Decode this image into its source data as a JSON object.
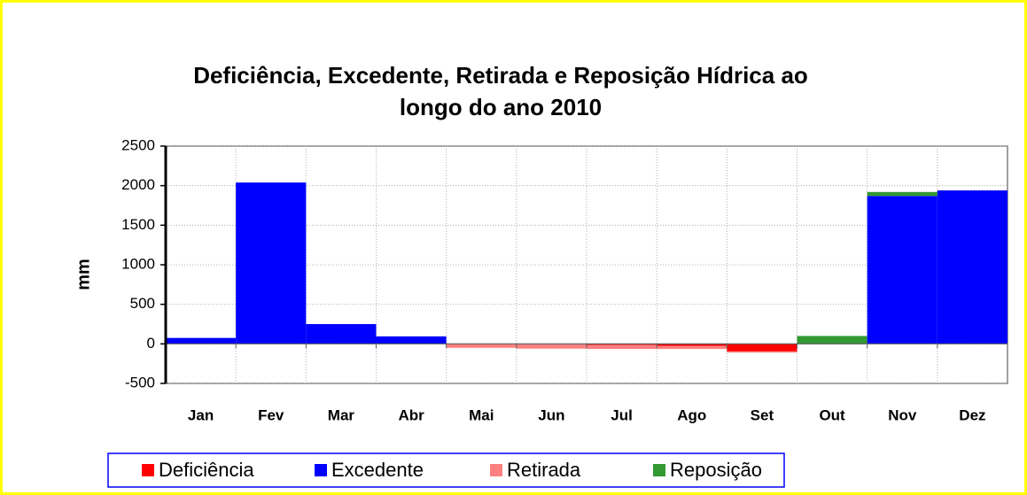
{
  "chart_data": {
    "type": "stacked_bar",
    "title": [
      "Deficiência, Excedente, Retirada e Reposição Hídrica ao",
      "longo do ano 2010"
    ],
    "y_label": "mm",
    "categories": [
      "Jan",
      "Fev",
      "Mar",
      "Abr",
      "Mai",
      "Jun",
      "Jul",
      "Ago",
      "Set",
      "Out",
      "Nov",
      "Dez"
    ],
    "series": [
      {
        "name": "Deficiência",
        "color": "#ff0000",
        "values": [
          0,
          0,
          0,
          0,
          0,
          0,
          -15,
          -25,
          -95,
          0,
          0,
          0
        ]
      },
      {
        "name": "Excedente",
        "color": "#0000ff",
        "values": [
          75,
          2040,
          250,
          95,
          0,
          0,
          0,
          0,
          0,
          0,
          1870,
          1940
        ]
      },
      {
        "name": "Retirada",
        "color": "#ff8080",
        "values": [
          0,
          0,
          0,
          0,
          -50,
          -60,
          -50,
          -40,
          -15,
          0,
          0,
          0
        ]
      },
      {
        "name": "Reposição",
        "color": "#339933",
        "values": [
          0,
          0,
          0,
          0,
          0,
          0,
          0,
          0,
          0,
          100,
          50,
          0
        ]
      }
    ],
    "ylim": [
      -500,
      2500
    ],
    "yticks": [
      -500,
      0,
      500,
      1000,
      1500,
      2000,
      2500
    ],
    "grid": true
  }
}
